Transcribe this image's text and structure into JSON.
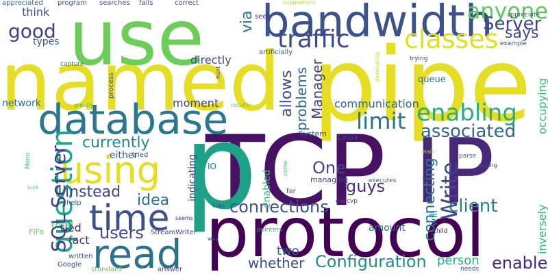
{
  "words": [
    {
      "text": "named",
      "color": "#e6de25"
    },
    {
      "text": "pipe",
      "color": "#e6de25"
    },
    {
      "text": "use",
      "color": "#6ccd59"
    },
    {
      "text": "TCP",
      "color": "#471164"
    },
    {
      "text": "IP",
      "color": "#482878"
    },
    {
      "text": "protocol",
      "color": "#440154"
    },
    {
      "text": "p",
      "color": "#1fa188"
    },
    {
      "text": "database",
      "color": "#2a788e"
    },
    {
      "text": "bandwidth",
      "color": "#3b528b"
    },
    {
      "text": "read",
      "color": "#2c718e"
    },
    {
      "text": "time",
      "color": "#3b518a"
    },
    {
      "text": "using",
      "color": "#e6de25"
    },
    {
      "text": "question",
      "color": "#20a386"
    },
    {
      "text": "classes",
      "color": "#dde318"
    },
    {
      "text": "traffic",
      "color": "#3e4a89"
    },
    {
      "text": "enabling",
      "color": "#29af7f"
    },
    {
      "text": "limit",
      "color": "#2a768e"
    },
    {
      "text": "anyone",
      "color": "#5ec962"
    },
    {
      "text": "Server",
      "color": "#3e4989"
    },
    {
      "text": "good",
      "color": "#433e85"
    },
    {
      "text": "SQL Server",
      "color": "#443983"
    },
    {
      "text": "associated",
      "color": "#31688e"
    },
    {
      "text": "Write",
      "color": "#404688"
    },
    {
      "text": "client",
      "color": "#26818e"
    },
    {
      "text": "users",
      "color": "#3f4788"
    },
    {
      "text": "connections",
      "color": "#3b528b"
    },
    {
      "text": "Configuration",
      "color": "#238a8d"
    },
    {
      "text": "enable",
      "color": "#482677"
    },
    {
      "text": "currently",
      "color": "#23898e"
    },
    {
      "text": "idea",
      "color": "#2c718e"
    },
    {
      "text": "instead",
      "color": "#3f4788"
    },
    {
      "text": "allows",
      "color": "#3e4a89"
    },
    {
      "text": "Manager",
      "color": "#433e85"
    },
    {
      "text": "problems",
      "color": "#31688e"
    },
    {
      "text": "via",
      "color": "#2c728e"
    },
    {
      "text": "says",
      "color": "#3e4c8a"
    },
    {
      "text": "One",
      "color": "#404588"
    },
    {
      "text": "guys",
      "color": "#46317e"
    },
    {
      "text": "connecting",
      "color": "#2a788e"
    },
    {
      "text": "whether",
      "color": "#3b528b"
    },
    {
      "text": "person",
      "color": "#29af7f"
    },
    {
      "text": "inversely",
      "color": "#34b679"
    },
    {
      "text": "occupying",
      "color": "#3bbb75"
    },
    {
      "text": "communication",
      "color": "#31688e"
    },
    {
      "text": "two",
      "color": "#34608d"
    },
    {
      "text": "moment",
      "color": "#414487"
    },
    {
      "text": "directly",
      "color": "#3e4a89"
    },
    {
      "text": "think",
      "color": "#3e4a89"
    },
    {
      "text": "types",
      "color": "#38598c"
    },
    {
      "text": "network",
      "color": "#2c728e"
    },
    {
      "text": "either",
      "color": "#39558c"
    },
    {
      "text": "tied",
      "color": "#482374"
    },
    {
      "text": "fact",
      "color": "#472d7b"
    },
    {
      "text": "total",
      "color": "#3bbb75"
    },
    {
      "text": "amount",
      "color": "#31688e"
    },
    {
      "text": "will",
      "color": "#2a788e"
    },
    {
      "text": "indicating",
      "color": "#3e4989"
    },
    {
      "text": "enabled",
      "color": "#3bbb75"
    },
    {
      "text": "queue",
      "color": "#2c728e"
    },
    {
      "text": "program",
      "color": "#3b528b"
    },
    {
      "text": "searches",
      "color": "#39568c"
    },
    {
      "text": "fails",
      "color": "#3e4c8a"
    },
    {
      "text": "correct",
      "color": "#3f4889"
    },
    {
      "text": "seek",
      "color": "#46337f"
    },
    {
      "text": "suggestions",
      "color": "#b5de2b"
    },
    {
      "text": "appreciate",
      "color": "#3e4a89"
    },
    {
      "text": "example",
      "color": "#3e4c8a"
    },
    {
      "text": "appreciated",
      "color": "#2e6f8e"
    },
    {
      "text": "artificially",
      "color": "#3b528b"
    },
    {
      "text": "trying",
      "color": "#433d84"
    },
    {
      "text": "capture",
      "color": "#2c728e"
    },
    {
      "text": "process",
      "color": "#3e4a89"
    },
    {
      "text": "hunt",
      "color": "#404688"
    },
    {
      "text": "developing",
      "color": "#bade28"
    },
    {
      "text": "greatly",
      "color": "#44bf70"
    },
    {
      "text": "results",
      "color": "#5ec962"
    },
    {
      "text": "System",
      "color": "#3e4c8a"
    },
    {
      "text": "Linux",
      "color": "#3e4c8a"
    },
    {
      "text": "tried",
      "color": "#3b528b"
    },
    {
      "text": "IO",
      "color": "#2a788e"
    },
    {
      "text": "come",
      "color": "#35b779"
    },
    {
      "text": "managing",
      "color": "#3e4a89"
    },
    {
      "text": "executes",
      "color": "#2c728e"
    },
    {
      "text": "far",
      "color": "#3b528b"
    },
    {
      "text": "execvp",
      "color": "#3e4c8a"
    },
    {
      "text": "main",
      "color": "#bade28"
    },
    {
      "text": "parse",
      "color": "#31688e"
    },
    {
      "text": "duping",
      "color": "#3e4989"
    },
    {
      "text": "Mono",
      "color": "#44bf70"
    },
    {
      "text": "luck",
      "color": "#5ec962"
    },
    {
      "text": "help",
      "color": "#31688e"
    },
    {
      "text": "links",
      "color": "#3e4989"
    },
    {
      "text": "seems",
      "color": "#46327e"
    },
    {
      "text": "StreamWriter",
      "color": "#3e4a89"
    },
    {
      "text": "way",
      "color": "#3b528b"
    },
    {
      "text": "pointers",
      "color": "#29af7f"
    },
    {
      "text": "child",
      "color": "#482576"
    },
    {
      "text": "FIFo",
      "color": "#5ec962"
    },
    {
      "text": "written",
      "color": "#3e4a89"
    },
    {
      "text": "Google",
      "color": "#3e4989"
    },
    {
      "text": "standard",
      "color": "#5ec962"
    },
    {
      "text": "answer",
      "color": "#404688"
    },
    {
      "text": "needs",
      "color": "#39568c"
    }
  ]
}
